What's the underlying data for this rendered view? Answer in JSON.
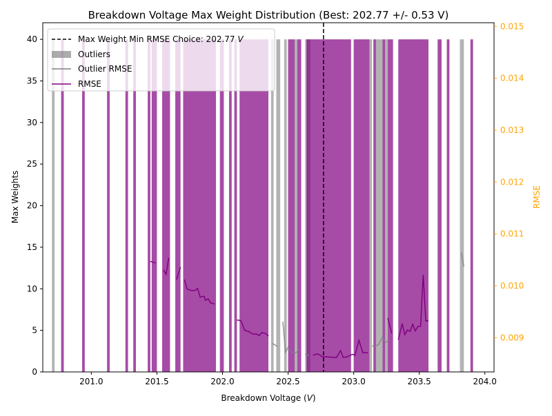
{
  "chart_data": {
    "type": "bar",
    "title": "Breakdown Voltage Max Weight Distribution (Best: 202.77 +/- 0.53 V)",
    "xlabel": "Breakdown Voltage (",
    "xlabel_unit": "V",
    "xlabel_close": ")",
    "ylabel": "Max Weights",
    "y2label": "RMSE",
    "xlim": [
      200.63,
      204.07
    ],
    "ylim": [
      0,
      42
    ],
    "y2lim": [
      0.00834,
      0.01507
    ],
    "x_ticks": [
      "201.0",
      "201.5",
      "202.0",
      "202.5",
      "203.0",
      "203.5",
      "204.0"
    ],
    "y_ticks": [
      "0",
      "5",
      "10",
      "15",
      "20",
      "25",
      "30",
      "35",
      "40"
    ],
    "y2_ticks": [
      "0.009",
      "0.010",
      "0.011",
      "0.012",
      "0.013",
      "0.014",
      "0.015"
    ],
    "grid": false,
    "legend_position": "top-left",
    "colors": {
      "bars": "#800080",
      "outliers": "#808080",
      "rmse": "#800080",
      "outlier_rmse": "#808080",
      "best_line": "#000000",
      "right_axis": "#ffa500"
    },
    "best_choice": 202.77,
    "legend": [
      {
        "kind": "dashed-line",
        "label": "Max Weight Min RMSE Choice: 202.77 ",
        "unit": "V"
      },
      {
        "kind": "patch",
        "label": "Outliers"
      },
      {
        "kind": "line",
        "label": "Outlier RMSE"
      },
      {
        "kind": "line",
        "label": "RMSE"
      }
    ],
    "series": [
      {
        "name": "Outliers",
        "height": 40,
        "bars": [
          [
            200.7,
            200.72
          ],
          [
            202.37,
            202.39
          ],
          [
            202.41,
            202.44
          ],
          [
            202.47,
            202.49
          ],
          [
            202.55,
            202.57
          ],
          [
            202.63,
            202.67
          ],
          [
            203.12,
            203.14
          ],
          [
            203.17,
            203.22
          ],
          [
            203.24,
            203.26
          ],
          [
            203.81,
            203.84
          ]
        ]
      },
      {
        "name": "Weights",
        "height": 40,
        "bars": [
          [
            200.77,
            200.79
          ],
          [
            200.93,
            200.95
          ],
          [
            201.12,
            201.14
          ],
          [
            201.26,
            201.28
          ],
          [
            201.32,
            201.34
          ],
          [
            201.43,
            201.45
          ],
          [
            201.46,
            201.5
          ],
          [
            201.54,
            201.6
          ],
          [
            201.64,
            201.68
          ],
          [
            201.7,
            201.95
          ],
          [
            201.98,
            202.01
          ],
          [
            202.05,
            202.07
          ],
          [
            202.09,
            202.11
          ],
          [
            202.13,
            202.35
          ],
          [
            202.5,
            202.55
          ],
          [
            202.57,
            202.6
          ],
          [
            202.64,
            202.98
          ],
          [
            203.0,
            203.12
          ],
          [
            203.15,
            203.17
          ],
          [
            203.22,
            203.24
          ],
          [
            203.26,
            203.3
          ],
          [
            203.34,
            203.57
          ],
          [
            203.64,
            203.67
          ],
          [
            203.71,
            203.73
          ],
          [
            203.89,
            203.91
          ]
        ]
      },
      {
        "name": "RMSE",
        "segments": [
          [
            [
              201.45,
              0.01047
            ],
            [
              201.49,
              0.01044
            ]
          ],
          [
            [
              201.55,
              0.01031
            ],
            [
              201.57,
              0.01022
            ],
            [
              201.59,
              0.01054
            ]
          ],
          [
            [
              201.65,
              0.01012
            ],
            [
              201.68,
              0.01036
            ]
          ],
          [
            [
              201.71,
              0.01012
            ],
            [
              201.73,
              0.00994
            ],
            [
              201.76,
              0.00991
            ],
            [
              201.79,
              0.00991
            ],
            [
              201.81,
              0.00995
            ],
            [
              201.83,
              0.00978
            ],
            [
              201.86,
              0.0098
            ],
            [
              201.87,
              0.00972
            ],
            [
              201.89,
              0.00975
            ],
            [
              201.91,
              0.00967
            ],
            [
              201.94,
              0.00965
            ]
          ],
          [
            [
              202.11,
              0.00934
            ],
            [
              202.14,
              0.00933
            ],
            [
              202.17,
              0.00914
            ],
            [
              202.2,
              0.00912
            ],
            [
              202.23,
              0.00907
            ],
            [
              202.26,
              0.00907
            ],
            [
              202.28,
              0.00904
            ],
            [
              202.3,
              0.0091
            ],
            [
              202.33,
              0.00908
            ],
            [
              202.35,
              0.00903
            ]
          ],
          [
            [
              202.69,
              0.00866
            ],
            [
              202.72,
              0.00869
            ],
            [
              202.74,
              0.00867
            ],
            [
              202.76,
              0.00863
            ],
            [
              202.8,
              0.00863
            ],
            [
              202.84,
              0.00862
            ],
            [
              202.87,
              0.00862
            ],
            [
              202.9,
              0.00875
            ],
            [
              202.92,
              0.00862
            ],
            [
              202.95,
              0.00863
            ],
            [
              202.99,
              0.00868
            ],
            [
              203.01,
              0.00866
            ],
            [
              203.04,
              0.00895
            ],
            [
              203.07,
              0.00871
            ],
            [
              203.11,
              0.00871
            ]
          ],
          [
            [
              203.26,
              0.00938
            ],
            [
              203.29,
              0.00908
            ]
          ],
          [
            [
              203.34,
              0.00896
            ],
            [
              203.37,
              0.00927
            ],
            [
              203.39,
              0.00906
            ],
            [
              203.41,
              0.00915
            ],
            [
              203.43,
              0.00912
            ],
            [
              203.45,
              0.00926
            ],
            [
              203.47,
              0.00913
            ],
            [
              203.49,
              0.00922
            ],
            [
              203.51,
              0.00922
            ],
            [
              203.53,
              0.01021
            ],
            [
              203.55,
              0.00932
            ],
            [
              203.57,
              0.00933
            ]
          ]
        ]
      },
      {
        "name": "Outlier RMSE",
        "segments": [
          [
            [
              202.38,
              0.00889
            ],
            [
              202.42,
              0.00883
            ]
          ],
          [
            [
              202.46,
              0.00931
            ],
            [
              202.48,
              0.00872
            ],
            [
              202.5,
              0.00881
            ],
            [
              202.53,
              0.00871
            ],
            [
              202.56,
              0.00871
            ],
            [
              202.59,
              0.00878
            ]
          ],
          [
            [
              202.63,
              0.00868
            ],
            [
              202.66,
              0.00866
            ]
          ],
          [
            [
              203.14,
              0.00884
            ],
            [
              203.17,
              0.00884
            ],
            [
              203.19,
              0.00887
            ],
            [
              203.22,
              0.00901
            ],
            [
              203.24,
              0.00891
            ],
            [
              203.26,
              0.00893
            ]
          ],
          [
            [
              203.82,
              0.01064
            ],
            [
              203.84,
              0.01037
            ]
          ]
        ]
      }
    ]
  }
}
